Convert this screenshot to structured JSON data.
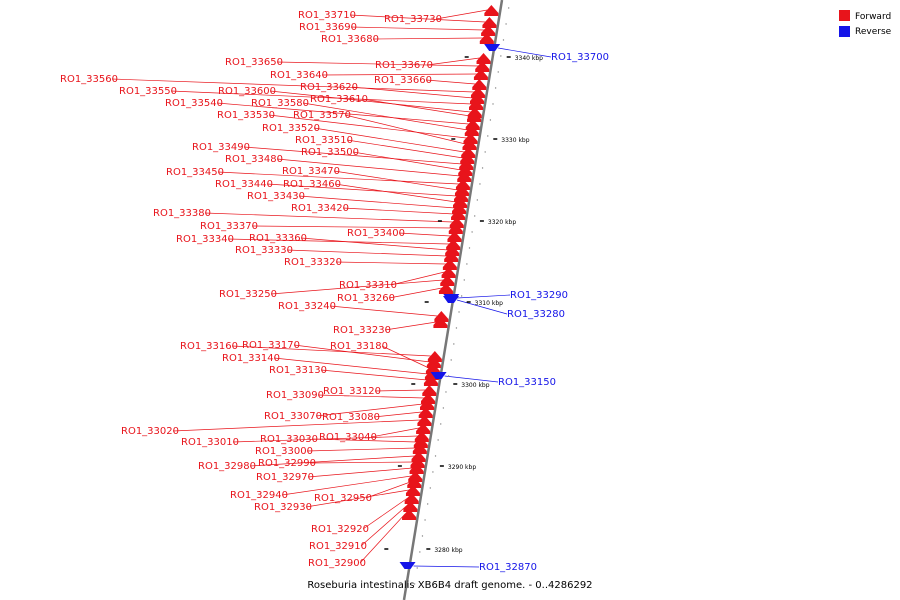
{
  "caption": "Roseburia intestinalis XB6B4 draft genome. - 0..4286292",
  "colors": {
    "forward": "#e8141b",
    "reverse": "#1414e8",
    "backbone": "#777777"
  },
  "legend": {
    "forward": "Forward",
    "reverse": "Reverse"
  },
  "scale_ticks": [
    "3340 kbp",
    "3330 kbp",
    "3320 kbp",
    "3310 kbp",
    "3300 kbp",
    "3290 kbp",
    "3280 kbp"
  ],
  "genes": [
    {
      "id": "RO1_33730",
      "strand": "+"
    },
    {
      "id": "RO1_33710",
      "strand": "+"
    },
    {
      "id": "RO1_33690",
      "strand": "+"
    },
    {
      "id": "RO1_33680",
      "strand": "+"
    },
    {
      "id": "RO1_33700",
      "strand": "-"
    },
    {
      "id": "RO1_33670",
      "strand": "+"
    },
    {
      "id": "RO1_33650",
      "strand": "+"
    },
    {
      "id": "RO1_33640",
      "strand": "+"
    },
    {
      "id": "RO1_33660",
      "strand": "+"
    },
    {
      "id": "RO1_33560",
      "strand": "+"
    },
    {
      "id": "RO1_33620",
      "strand": "+"
    },
    {
      "id": "RO1_33550",
      "strand": "+"
    },
    {
      "id": "RO1_33600",
      "strand": "+"
    },
    {
      "id": "RO1_33610",
      "strand": "+"
    },
    {
      "id": "RO1_33540",
      "strand": "+"
    },
    {
      "id": "RO1_33580",
      "strand": "+"
    },
    {
      "id": "RO1_33530",
      "strand": "+"
    },
    {
      "id": "RO1_33570",
      "strand": "+"
    },
    {
      "id": "RO1_33520",
      "strand": "+"
    },
    {
      "id": "RO1_33510",
      "strand": "+"
    },
    {
      "id": "RO1_33490",
      "strand": "+"
    },
    {
      "id": "RO1_33500",
      "strand": "+"
    },
    {
      "id": "RO1_33480",
      "strand": "+"
    },
    {
      "id": "RO1_33450",
      "strand": "+"
    },
    {
      "id": "RO1_33470",
      "strand": "+"
    },
    {
      "id": "RO1_33440",
      "strand": "+"
    },
    {
      "id": "RO1_33460",
      "strand": "+"
    },
    {
      "id": "RO1_33430",
      "strand": "+"
    },
    {
      "id": "RO1_33420",
      "strand": "+"
    },
    {
      "id": "RO1_33380",
      "strand": "+"
    },
    {
      "id": "RO1_33370",
      "strand": "+"
    },
    {
      "id": "RO1_33400",
      "strand": "+"
    },
    {
      "id": "RO1_33340",
      "strand": "+"
    },
    {
      "id": "RO1_33360",
      "strand": "+"
    },
    {
      "id": "RO1_33330",
      "strand": "+"
    },
    {
      "id": "RO1_33320",
      "strand": "+"
    },
    {
      "id": "RO1_33310",
      "strand": "+"
    },
    {
      "id": "RO1_33290",
      "strand": "-"
    },
    {
      "id": "RO1_33250",
      "strand": "+"
    },
    {
      "id": "RO1_33260",
      "strand": "+"
    },
    {
      "id": "RO1_33240",
      "strand": "+"
    },
    {
      "id": "RO1_33280",
      "strand": "-"
    },
    {
      "id": "RO1_33230",
      "strand": "+"
    },
    {
      "id": "RO1_33160",
      "strand": "+"
    },
    {
      "id": "RO1_33170",
      "strand": "+"
    },
    {
      "id": "RO1_33180",
      "strand": "+"
    },
    {
      "id": "RO1_33140",
      "strand": "+"
    },
    {
      "id": "RO1_33130",
      "strand": "+"
    },
    {
      "id": "RO1_33150",
      "strand": "-"
    },
    {
      "id": "RO1_33120",
      "strand": "+"
    },
    {
      "id": "RO1_33090",
      "strand": "+"
    },
    {
      "id": "RO1_33070",
      "strand": "+"
    },
    {
      "id": "RO1_33080",
      "strand": "+"
    },
    {
      "id": "RO1_33020",
      "strand": "+"
    },
    {
      "id": "RO1_33040",
      "strand": "+"
    },
    {
      "id": "RO1_33010",
      "strand": "+"
    },
    {
      "id": "RO1_33030",
      "strand": "+"
    },
    {
      "id": "RO1_33000",
      "strand": "+"
    },
    {
      "id": "RO1_32980",
      "strand": "+"
    },
    {
      "id": "RO1_32990",
      "strand": "+"
    },
    {
      "id": "RO1_32970",
      "strand": "+"
    },
    {
      "id": "RO1_32940",
      "strand": "+"
    },
    {
      "id": "RO1_32950",
      "strand": "+"
    },
    {
      "id": "RO1_32930",
      "strand": "+"
    },
    {
      "id": "RO1_32920",
      "strand": "+"
    },
    {
      "id": "RO1_32910",
      "strand": "+"
    },
    {
      "id": "RO1_32900",
      "strand": "+"
    },
    {
      "id": "RO1_32870",
      "strand": "-"
    }
  ]
}
